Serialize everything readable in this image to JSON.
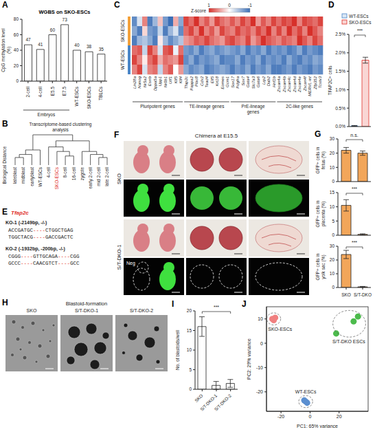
{
  "chart_data": [
    {
      "panel": "A",
      "type": "bar",
      "title": "WGBS on SKO-ESCs",
      "y_label": "CpG methylation level (%)",
      "categories": [
        "2-cell",
        "4-cell",
        "E5.5",
        "E7.5",
        "WT-ESCs",
        "SKO-ESCs",
        "TBLCs"
      ],
      "values": [
        47,
        41,
        60,
        73,
        40,
        38,
        35
      ],
      "color": "#ffffff",
      "ylim": [
        0,
        80
      ],
      "yticks": [
        0,
        20,
        40,
        60,
        80
      ],
      "data_labels": true,
      "groups": [
        {
          "name": "Embryos",
          "members": [
            "2-cell",
            "4-cell",
            "E5.5",
            "E7.5"
          ]
        }
      ]
    },
    {
      "panel": "D",
      "type": "bar",
      "y_label": "TFAP2C+ cells",
      "categories": [
        "WT-ESCs",
        "SKO-ESCs"
      ],
      "values": [
        0.02,
        1.8
      ],
      "errors": [
        0.01,
        0.08
      ],
      "colors": [
        "#4a86c8",
        "#e0302a"
      ],
      "ylim": [
        0,
        2.5
      ],
      "yticks": [
        {
          "value": 0,
          "label": "0.0%"
        },
        {
          "value": 0.5,
          "label": "0.5%"
        },
        {
          "value": 1,
          "label": "1.0%"
        },
        {
          "value": 1.5,
          "label": "1.5%"
        },
        {
          "value": 2,
          "label": "2.0%"
        },
        {
          "value": 2.5,
          "label": "2.5%"
        }
      ],
      "legend": "top",
      "tick_labels": "y",
      "significance": "***"
    },
    {
      "panel": "G",
      "type": "bar",
      "y_label": "GFP+ cells in fetus (%)",
      "categories": [
        "SKO",
        "S/T-DKO"
      ],
      "values": [
        22,
        20
      ],
      "errors": [
        2,
        1.5
      ],
      "color": "#f2a65a",
      "ylim": [
        0,
        30
      ],
      "yticks": [
        0,
        10,
        20,
        30
      ],
      "tick_labels": "y",
      "significance": "n.s."
    },
    {
      "type": "bar",
      "y_label": "GFP+ cells in placenta (%)",
      "categories": [
        "SKO",
        "S/T-DKO"
      ],
      "values": [
        10.5,
        0.3
      ],
      "errors": [
        2,
        0.2
      ],
      "color": "#f2a65a",
      "ylim": [
        0,
        15
      ],
      "yticks": [
        0,
        5,
        10,
        15
      ],
      "tick_labels": "y",
      "significance": "***"
    },
    {
      "type": "bar",
      "y_label": "GFP+ cells in yolk sac (%)",
      "categories": [
        "SKO",
        "S/T-DKO"
      ],
      "values": [
        24,
        0.5
      ],
      "errors": [
        3,
        0.3
      ],
      "color": "#f2a65a",
      "ylim": [
        0,
        30
      ],
      "yticks": [
        0,
        10,
        20,
        30
      ],
      "significance": "***"
    },
    {
      "panel": "I",
      "type": "bar",
      "y_label": "No. of blastoids/well",
      "categories": [
        "SKO",
        "S/T-DKO-1",
        "S/T-DKO-2"
      ],
      "values": [
        16,
        1,
        1.5
      ],
      "errors": [
        2.5,
        1,
        1
      ],
      "color": "#ffffff",
      "ylim": [
        0,
        20
      ],
      "yticks": [
        0,
        5,
        10,
        15,
        20
      ],
      "significance": "***"
    },
    {
      "panel": "J",
      "type": "scatter",
      "x_label": "PC1: 65% variance",
      "y_label": "PC2: 29% variance",
      "xlim": [
        -30,
        40
      ],
      "xticks": [
        -20,
        0,
        20
      ],
      "ylim": [
        -28,
        15
      ],
      "yticks": [
        -20,
        -10,
        0,
        10
      ],
      "series": [
        {
          "name": "SKO-ESCs",
          "color": "#f08080",
          "x": [
            -26,
            -25,
            -24
          ],
          "y": [
            10,
            9.5,
            10.5
          ]
        },
        {
          "name": "S/T-DKO ESCs",
          "color": "#4cbb4c",
          "x": [
            18,
            30,
            33
          ],
          "y": [
            4,
            9,
            11
          ]
        },
        {
          "name": "WT-ESCs",
          "color": "#5b8fd0",
          "x": [
            -3,
            -2,
            -4
          ],
          "y": [
            -24,
            -24.5,
            -23.5
          ]
        }
      ]
    }
  ],
  "dendrogram": {
    "panel": "B",
    "title": "Transcriptome-based clustering analysis",
    "y_label": "Biological Distance",
    "leaves": [
      "lateblast",
      "midblast",
      "earlyblast",
      "WT-ESCs",
      "4-cell",
      "SKO-ESCs",
      "8-cell",
      "16-cell",
      "zygote",
      "early 2-cell",
      "mid 2-cell",
      "late 2-cell"
    ],
    "highlight": "SKO-ESCs",
    "highlight_color": "#e0302a",
    "merges": [
      [
        0,
        1,
        0.25
      ],
      [
        12,
        2,
        0.35
      ],
      [
        13,
        3,
        0.5
      ],
      [
        6,
        7,
        0.3
      ],
      [
        5,
        15,
        0.45
      ],
      [
        4,
        16,
        0.6
      ],
      [
        10,
        11,
        0.25
      ],
      [
        9,
        18,
        0.35
      ],
      [
        8,
        19,
        0.45
      ],
      [
        17,
        20,
        0.8
      ],
      [
        14,
        21,
        1.0
      ]
    ]
  },
  "heatmap": {
    "panel": "C",
    "colorbar": {
      "title": "Z-score",
      "range": [
        -1,
        1
      ],
      "ticks": [
        1,
        0,
        -1
      ],
      "high_color": "#d7302a",
      "low_color": "#3b6fb6"
    },
    "row_groups": [
      {
        "name": "SKO-ESCs",
        "rows": 3,
        "color": "#f4a13a"
      },
      {
        "name": "WT-ESCs",
        "rows": 3,
        "color": "#4a86c8"
      }
    ],
    "gene_groups": [
      {
        "name": "Pluripotent genes",
        "genes": [
          "Lin28a",
          "Nanog",
          "Nr5a2",
          "Esrrb",
          "Dppa5a",
          "Upp1",
          "Nr0b1",
          "Utf1",
          "Klf5",
          "Klf4"
        ]
      },
      {
        "name": "TE-lineage genes",
        "genes": [
          "Tfap2c",
          "Pappa2",
          "Plac8",
          "Cdx2",
          "Tead4",
          "Elf5",
          "Krt18",
          "Eomes",
          "Gcm1"
        ]
      },
      {
        "name": "PrE-lineage genes",
        "genes": [
          "Sox17",
          "Pdgfra",
          "Sox7",
          "Gata4",
          "Slc7a3",
          "Gata6",
          "Lrp2",
          "Dab2",
          "Hnf1b"
        ]
      },
      {
        "name": "2C-like genes",
        "genes": [
          "Zscan4a",
          "Zscan4b",
          "Zscan4c",
          "Zscan4d",
          "Zscan4e",
          "Zscan4f",
          "MERVL-int",
          "Zfp352",
          "Tcstv3"
        ]
      }
    ],
    "cells": [
      [
        -0.8,
        -0.2,
        0.6,
        -0.9,
        -0.5,
        0.3,
        -0.7,
        -1.0,
        0.4,
        -0.6,
        0.9,
        0.7,
        1.0,
        0.6,
        0.8,
        0.5,
        0.9,
        0.7,
        0.6,
        0.8,
        0.6,
        0.9,
        0.7,
        1.0,
        0.5,
        0.8,
        0.6,
        0.9,
        0.7,
        0.9,
        0.8,
        1.0,
        0.6,
        0.9,
        0.8,
        0.7,
        0.9
      ],
      [
        -0.6,
        -0.9,
        0.2,
        -0.7,
        -0.8,
        -0.3,
        -0.9,
        -0.5,
        -0.2,
        -0.8,
        0.7,
        0.9,
        0.6,
        1.0,
        0.6,
        0.8,
        0.5,
        0.9,
        0.7,
        0.6,
        0.9,
        0.7,
        0.8,
        0.6,
        0.9,
        0.7,
        1.0,
        0.6,
        0.9,
        0.6,
        1.0,
        0.7,
        0.9,
        0.6,
        1.0,
        0.8,
        0.6
      ],
      [
        -0.9,
        -0.5,
        -0.4,
        -0.6,
        -0.9,
        0.1,
        -0.5,
        -0.8,
        -0.6,
        -0.4,
        0.5,
        0.6,
        0.8,
        0.7,
        0.9,
        0.7,
        0.6,
        0.5,
        0.8,
        0.9,
        0.7,
        0.6,
        0.9,
        0.5,
        0.7,
        1.0,
        0.8,
        0.7,
        0.6,
        0.8,
        0.7,
        0.6,
        1.0,
        0.8,
        0.6,
        0.9,
        0.7
      ],
      [
        0.7,
        0.8,
        -0.3,
        0.9,
        0.6,
        -0.2,
        0.8,
        0.9,
        -0.1,
        0.7,
        -0.7,
        -0.8,
        -0.6,
        -0.9,
        -0.7,
        -0.6,
        -0.8,
        -0.7,
        -0.6,
        -0.7,
        -0.8,
        -0.6,
        -0.9,
        -0.7,
        -0.8,
        -0.6,
        -0.9,
        -0.7,
        -0.8,
        -0.7,
        -0.9,
        -0.8,
        -0.6,
        -0.9,
        -0.7,
        -0.8,
        -0.9
      ],
      [
        0.9,
        0.6,
        0.1,
        0.7,
        0.9,
        0.4,
        0.7,
        0.6,
        0.5,
        0.9,
        -0.8,
        -0.6,
        -0.9,
        -0.7,
        -0.8,
        -0.7,
        -0.6,
        -0.9,
        -0.8,
        -0.8,
        -0.6,
        -0.9,
        -0.7,
        -0.8,
        -0.6,
        -0.9,
        -0.7,
        -0.8,
        -0.7,
        -0.9,
        -0.6,
        -0.8,
        -0.9,
        -0.7,
        -0.8,
        -0.6,
        -0.7
      ],
      [
        0.6,
        0.9,
        -0.2,
        0.6,
        0.7,
        -0.3,
        0.6,
        0.8,
        0.0,
        0.5,
        -0.6,
        -0.8,
        -0.7,
        -0.6,
        -0.9,
        -0.8,
        -0.7,
        -0.6,
        -0.7,
        -0.9,
        -0.7,
        -0.8,
        -0.6,
        -0.9,
        -0.7,
        -0.8,
        -0.6,
        -0.9,
        -0.9,
        -0.8,
        -0.7,
        -0.9,
        -0.7,
        -0.8,
        -0.9,
        -0.7,
        -0.8
      ]
    ]
  },
  "sequences": {
    "panel": "E",
    "gene": "Tfap2c",
    "gene_color": "#e0302a",
    "alleles": [
      {
        "label": "KO-1 (-2149bp, -/-)",
        "lines": [
          "ACCGATGC----CTGGCTGAG",
          "TGGCTACG----GACCGACTC"
        ]
      },
      {
        "label": "KO-2 (-1932bp, -200bp, -/-)",
        "lines": [
          "CGGG----GTTGCAGA----CGG",
          "GCCC----CAACGTCT----GCC"
        ]
      }
    ]
  },
  "chimera": {
    "panel": "F",
    "title": "Chimera at E15.5",
    "rows": [
      "SKO",
      "S/T-DKO-1"
    ],
    "negative_label": "Neg"
  },
  "blastoids": {
    "panel": "H",
    "title": "Blastoid-formation",
    "columns": [
      "SKO",
      "S/T-DKO-1",
      "S/T-DKO-2"
    ]
  }
}
